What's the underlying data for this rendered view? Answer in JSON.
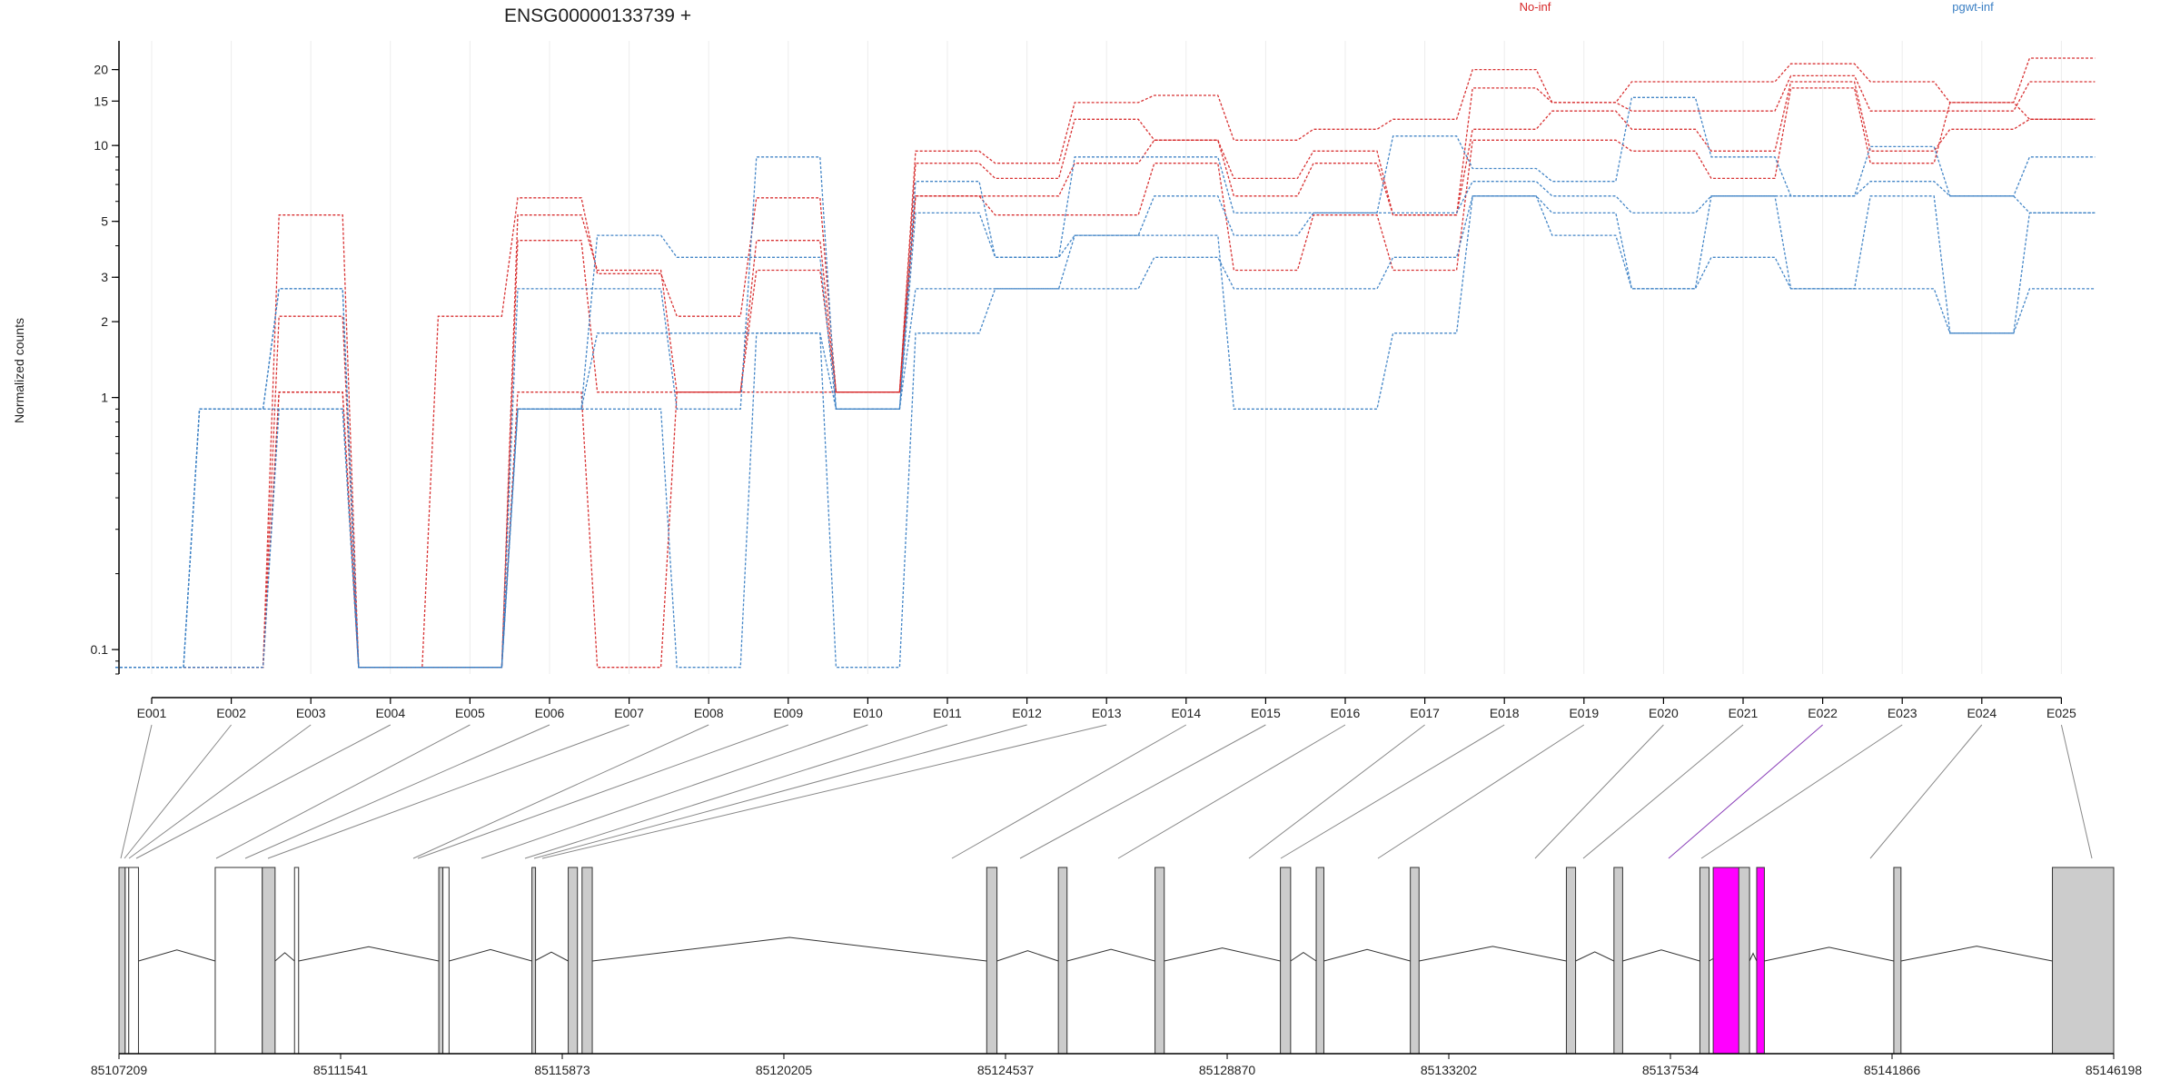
{
  "chart_data": {
    "type": "line",
    "title": "ENSG00000133739 +",
    "ylabel": "Normalized counts",
    "xlabel": "",
    "y_scale": "log",
    "ylim": [
      0.08,
      26
    ],
    "y_ticks": [
      0.1,
      1,
      2,
      3,
      5,
      10,
      15,
      20
    ],
    "y_tick_labels": [
      "0.1",
      "1",
      "2",
      "3",
      "5",
      "10",
      "15",
      "20"
    ],
    "grid": "vertical lines at each exon",
    "legend": [
      {
        "name": "No-inf",
        "color": "#d62728",
        "placement": "top-right"
      },
      {
        "name": "pgwt-inf",
        "color": "#3a7fc4",
        "placement": "top-right"
      }
    ],
    "categories": [
      "E001",
      "E002",
      "E003",
      "E004",
      "E005",
      "E006",
      "E007",
      "E008",
      "E009",
      "E010",
      "E011",
      "E012",
      "E013",
      "E014",
      "E015",
      "E016",
      "E017",
      "E018",
      "E019",
      "E020",
      "E021",
      "E022",
      "E023",
      "E024",
      "E025"
    ],
    "zero_value": 0.085,
    "series": [
      {
        "group": "No-inf",
        "color": "#d62728",
        "values": [
          0.085,
          0.085,
          5.3,
          0.085,
          2.1,
          6.2,
          3.1,
          2.1,
          6.2,
          1.05,
          9.5,
          8.5,
          14.8,
          15.8,
          10.5,
          11.6,
          12.7,
          20.0,
          14.8,
          17.9,
          17.9,
          21.1,
          17.9,
          14.8,
          22.2
        ]
      },
      {
        "group": "No-inf",
        "color": "#d62728",
        "values": [
          0.085,
          0.085,
          2.1,
          0.085,
          0.085,
          5.3,
          3.2,
          1.05,
          4.2,
          1.05,
          8.5,
          7.4,
          12.7,
          10.5,
          7.4,
          9.5,
          5.3,
          16.9,
          14.8,
          13.7,
          13.7,
          18.9,
          13.7,
          13.7,
          17.9
        ]
      },
      {
        "group": "No-inf",
        "color": "#d62728",
        "values": [
          0.085,
          0.085,
          1.05,
          0.085,
          0.085,
          4.2,
          1.05,
          1.05,
          3.2,
          1.05,
          6.3,
          6.3,
          8.5,
          10.5,
          6.3,
          8.5,
          5.3,
          11.6,
          13.7,
          11.6,
          9.5,
          17.9,
          9.5,
          11.6,
          12.7
        ]
      },
      {
        "group": "No-inf",
        "color": "#d62728",
        "values": [
          0.085,
          0.085,
          1.05,
          0.085,
          0.085,
          1.05,
          0.085,
          1.05,
          1.05,
          1.05,
          6.3,
          5.3,
          5.3,
          8.5,
          3.2,
          5.3,
          3.2,
          10.5,
          10.5,
          9.5,
          7.4,
          16.9,
          8.5,
          14.8,
          12.7
        ]
      },
      {
        "group": "pgwt-inf",
        "color": "#3a7fc4",
        "values": [
          0.085,
          0.9,
          2.7,
          0.085,
          0.085,
          2.7,
          2.7,
          0.9,
          9.0,
          0.9,
          7.2,
          3.6,
          9.0,
          9.0,
          5.4,
          5.4,
          10.9,
          8.1,
          7.2,
          15.5,
          9.0,
          6.3,
          9.9,
          6.3,
          9.0
        ]
      },
      {
        "group": "pgwt-inf",
        "color": "#3a7fc4",
        "values": [
          0.085,
          0.9,
          2.7,
          0.085,
          0.085,
          0.9,
          4.4,
          3.6,
          3.6,
          0.9,
          5.4,
          3.6,
          4.4,
          6.3,
          4.4,
          5.4,
          5.4,
          7.2,
          6.3,
          5.4,
          6.3,
          6.3,
          7.2,
          6.3,
          5.4
        ]
      },
      {
        "group": "pgwt-inf",
        "color": "#3a7fc4",
        "values": [
          0.085,
          0.9,
          0.9,
          0.085,
          0.085,
          0.9,
          1.8,
          1.8,
          1.8,
          0.9,
          2.7,
          2.7,
          2.7,
          3.6,
          2.7,
          2.7,
          3.6,
          6.3,
          5.4,
          2.7,
          3.6,
          2.7,
          6.3,
          1.8,
          5.4
        ]
      },
      {
        "group": "pgwt-inf",
        "color": "#3a7fc4",
        "values": [
          0.085,
          0.085,
          0.9,
          0.085,
          0.085,
          0.9,
          0.9,
          0.085,
          1.8,
          0.085,
          1.8,
          2.7,
          4.4,
          4.4,
          0.9,
          0.9,
          1.8,
          6.3,
          4.4,
          2.7,
          6.3,
          2.7,
          2.7,
          1.8,
          2.7
        ]
      }
    ],
    "gene_model": {
      "coordinate_ticks": [
        "85107209",
        "85111541",
        "85115873",
        "85120205",
        "85124537",
        "85128870",
        "85133202",
        "85137534",
        "85141866",
        "85146198"
      ],
      "coordinate_range": [
        85107209,
        85146198
      ],
      "highlighted_exon": "E022",
      "highlight_color": "#ff00ff",
      "exon_fill": "#cccccc"
    }
  }
}
